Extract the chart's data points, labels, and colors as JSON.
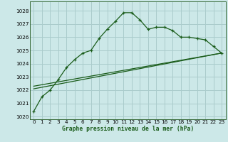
{
  "title": "Graphe pression niveau de la mer (hPa)",
  "bg_color": "#cce8e8",
  "grid_color": "#aacccc",
  "line_color": "#1a5c1a",
  "xlim": [
    -0.5,
    23.5
  ],
  "ylim": [
    1019.8,
    1028.7
  ],
  "yticks": [
    1020,
    1021,
    1022,
    1023,
    1024,
    1025,
    1026,
    1027,
    1028
  ],
  "xticks": [
    0,
    1,
    2,
    3,
    4,
    5,
    6,
    7,
    8,
    9,
    10,
    11,
    12,
    13,
    14,
    15,
    16,
    17,
    18,
    19,
    20,
    21,
    22,
    23
  ],
  "line1_x": [
    0,
    1,
    2,
    3,
    4,
    5,
    6,
    7,
    8,
    9,
    10,
    11,
    12,
    13,
    14,
    15,
    16,
    17,
    18,
    19,
    20,
    21,
    22,
    23
  ],
  "line1_y": [
    1020.4,
    1021.5,
    1022.0,
    1022.8,
    1023.7,
    1024.3,
    1024.8,
    1025.0,
    1025.9,
    1026.6,
    1027.2,
    1027.85,
    1027.85,
    1027.3,
    1026.6,
    1026.75,
    1026.75,
    1026.5,
    1026.0,
    1026.0,
    1025.9,
    1025.8,
    1025.3,
    1024.8
  ],
  "line2_x": [
    0,
    23
  ],
  "line2_y": [
    1022.3,
    1024.8
  ],
  "line3_x": [
    0,
    23
  ],
  "line3_y": [
    1022.1,
    1024.8
  ],
  "xlabel_fontsize": 5.8,
  "tick_fontsize": 5.2
}
